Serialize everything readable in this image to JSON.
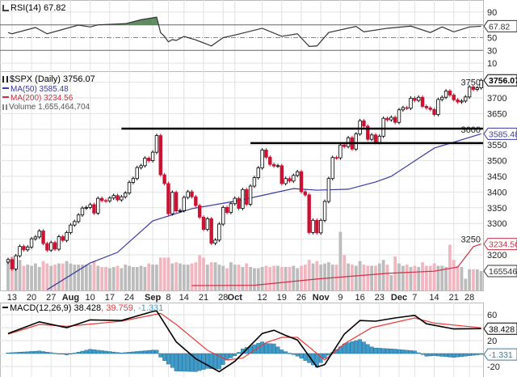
{
  "colors": {
    "up_candle": "#000000",
    "down_candle": "#cc1133",
    "volume_up": "#bcbcbc",
    "volume_down": "#f2b6c0",
    "ma50": "#3a3aa0",
    "ma200": "#cc3048",
    "rsi_line": "#333333",
    "rsi_overbought_fill": "#5e8c5e",
    "macd_line": "#000000",
    "signal_line": "#e83a3a",
    "histogram": "#3d9ccc",
    "grid": "#e2e2e2"
  },
  "chart_data": [
    {
      "type": "line",
      "panel": "rsi",
      "label": "RSI(14) 67.82",
      "value_tag": "67.82",
      "ylim": [
        0,
        100
      ],
      "ticks": [
        90,
        50,
        30,
        10
      ],
      "overbought": 70,
      "oversold": 30,
      "grid": true,
      "points": [
        [
          "07-10",
          58
        ],
        [
          "07-13",
          56
        ],
        [
          "07-21",
          65.8
        ],
        [
          "07-24",
          56
        ],
        [
          "08-05",
          69.6
        ],
        [
          "08-10",
          66.7
        ],
        [
          "08-12",
          70
        ],
        [
          "08-21",
          71.8
        ],
        [
          "08-27",
          78
        ],
        [
          "09-01",
          81
        ],
        [
          "09-02",
          82
        ],
        [
          "09-03",
          58
        ],
        [
          "09-04",
          52
        ],
        [
          "09-08",
          43.4
        ],
        [
          "09-09",
          47
        ],
        [
          "09-10",
          45.6
        ],
        [
          "09-14",
          51.9
        ],
        [
          "09-17",
          46.5
        ],
        [
          "09-23",
          37
        ],
        [
          "09-28",
          50
        ],
        [
          "10-01",
          54
        ],
        [
          "10-12",
          64.6
        ],
        [
          "10-19",
          52
        ],
        [
          "10-23",
          56
        ],
        [
          "10-28",
          36.3
        ],
        [
          "10-30",
          37
        ],
        [
          "11-04",
          58
        ],
        [
          "11-13",
          67.5
        ],
        [
          "11-17",
          59
        ],
        [
          "11-25",
          64.6
        ],
        [
          "12-04",
          68
        ],
        [
          "12-11",
          58
        ],
        [
          "12-16",
          66.7
        ],
        [
          "12-21",
          59
        ],
        [
          "12-28",
          66.7
        ],
        [
          "12-31",
          67.82
        ]
      ]
    },
    {
      "type": "candlestick",
      "panel": "price",
      "label": "$SPX (Daily) 3756.07",
      "ma50_label": "MA(50) 3585.48",
      "ma200_label": "MA(200) 3234.56",
      "volume_label": "Volume 1,655,464,704",
      "price_tag": "3756.07",
      "ma50_tag": "3585.48",
      "ma200_tag": "3234.56",
      "volume_tag": "1655464704",
      "ylim": [
        3100,
        3780
      ],
      "ticks": [
        3750,
        3700,
        3650,
        3600,
        3550,
        3500,
        3450,
        3400,
        3350,
        3300,
        3250,
        3200
      ],
      "grid": true,
      "x_labels": [
        [
          "07-13",
          "13"
        ],
        [
          "07-20",
          "20"
        ],
        [
          "07-27",
          "27"
        ],
        [
          "08-03",
          "Aug"
        ],
        [
          "08-10",
          "10"
        ],
        [
          "08-17",
          "17"
        ],
        [
          "08-24",
          "24"
        ],
        [
          "09-01",
          "Sep"
        ],
        [
          "09-08",
          "8"
        ],
        [
          "09-14",
          "14"
        ],
        [
          "09-21",
          "21"
        ],
        [
          "09-28",
          "28"
        ],
        [
          "10-01",
          "Oct"
        ],
        [
          "10-12",
          "12"
        ],
        [
          "10-19",
          "19"
        ],
        [
          "10-26",
          "26"
        ],
        [
          "11-02",
          "Nov"
        ],
        [
          "11-09",
          "9"
        ],
        [
          "11-16",
          "16"
        ],
        [
          "11-23",
          "23"
        ],
        [
          "12-01",
          "Dec"
        ],
        [
          "12-07",
          "7"
        ],
        [
          "12-14",
          "14"
        ],
        [
          "12-21",
          "21"
        ],
        [
          "12-28",
          "28"
        ]
      ],
      "bold_labels": [
        "Aug",
        "Sep",
        "Oct",
        "Nov",
        "Dec"
      ],
      "candles_date_close_volumeB": [
        [
          "07-10",
          3185,
          2.5
        ],
        [
          "07-13",
          3155,
          2.9
        ],
        [
          "07-14",
          3197,
          2.5
        ],
        [
          "07-15",
          3227,
          2.6
        ],
        [
          "07-16",
          3216,
          2.1
        ],
        [
          "07-17",
          3225,
          2.2
        ],
        [
          "07-20",
          3251,
          2.1
        ],
        [
          "07-21",
          3257,
          2.3
        ],
        [
          "07-22",
          3276,
          2.0
        ],
        [
          "07-23",
          3236,
          2.5
        ],
        [
          "07-24",
          3215,
          2.3
        ],
        [
          "07-27",
          3239,
          2.1
        ],
        [
          "07-28",
          3218,
          2.2
        ],
        [
          "07-29",
          3258,
          2.3
        ],
        [
          "07-30",
          3246,
          2.3
        ],
        [
          "07-31",
          3271,
          2.5
        ],
        [
          "08-03",
          3295,
          2.3
        ],
        [
          "08-04",
          3306,
          2.2
        ],
        [
          "08-05",
          3327,
          2.2
        ],
        [
          "08-06",
          3349,
          2.2
        ],
        [
          "08-07",
          3351,
          2.2
        ],
        [
          "08-10",
          3360,
          2.2
        ],
        [
          "08-11",
          3333,
          2.5
        ],
        [
          "08-12",
          3380,
          2.1
        ],
        [
          "08-13",
          3373,
          2.0
        ],
        [
          "08-14",
          3372,
          2.0
        ],
        [
          "08-17",
          3381,
          1.9
        ],
        [
          "08-18",
          3389,
          2.0
        ],
        [
          "08-19",
          3375,
          2.1
        ],
        [
          "08-20",
          3385,
          1.9
        ],
        [
          "08-21",
          3397,
          2.2
        ],
        [
          "08-24",
          3431,
          2.1
        ],
        [
          "08-25",
          3443,
          2.0
        ],
        [
          "08-26",
          3478,
          2.0
        ],
        [
          "08-27",
          3484,
          2.1
        ],
        [
          "08-28",
          3508,
          2.0
        ],
        [
          "08-31",
          3500,
          2.3
        ],
        [
          "09-01",
          3527,
          2.2
        ],
        [
          "09-02",
          3580,
          2.2
        ],
        [
          "09-03",
          3455,
          2.8
        ],
        [
          "09-04",
          3427,
          2.8
        ],
        [
          "09-08",
          3331,
          2.8
        ],
        [
          "09-09",
          3399,
          2.3
        ],
        [
          "09-10",
          3340,
          2.4
        ],
        [
          "09-11",
          3341,
          2.3
        ],
        [
          "09-14",
          3383,
          2.2
        ],
        [
          "09-15",
          3401,
          2.2
        ],
        [
          "09-16",
          3385,
          2.3
        ],
        [
          "09-17",
          3357,
          2.4
        ],
        [
          "09-18",
          3320,
          3.0
        ],
        [
          "09-21",
          3281,
          2.8
        ],
        [
          "09-22",
          3315,
          2.2
        ],
        [
          "09-23",
          3237,
          2.4
        ],
        [
          "09-24",
          3247,
          2.4
        ],
        [
          "09-25",
          3298,
          2.2
        ],
        [
          "09-28",
          3351,
          2.1
        ],
        [
          "09-29",
          3335,
          1.9
        ],
        [
          "09-30",
          3363,
          2.4
        ],
        [
          "10-01",
          3380,
          2.2
        ],
        [
          "10-02",
          3348,
          2.2
        ],
        [
          "10-05",
          3408,
          2.0
        ],
        [
          "10-06",
          3361,
          2.3
        ],
        [
          "10-07",
          3419,
          2.0
        ],
        [
          "10-08",
          3446,
          1.9
        ],
        [
          "10-09",
          3477,
          1.9
        ],
        [
          "10-12",
          3534,
          2.0
        ],
        [
          "10-13",
          3511,
          2.1
        ],
        [
          "10-14",
          3488,
          2.0
        ],
        [
          "10-15",
          3483,
          2.1
        ],
        [
          "10-16",
          3484,
          2.1
        ],
        [
          "10-19",
          3427,
          2.0
        ],
        [
          "10-20",
          3443,
          2.0
        ],
        [
          "10-21",
          3435,
          2.0
        ],
        [
          "10-22",
          3453,
          2.1
        ],
        [
          "10-23",
          3465,
          1.9
        ],
        [
          "10-26",
          3401,
          2.1
        ],
        [
          "10-27",
          3391,
          2.2
        ],
        [
          "10-28",
          3271,
          2.6
        ],
        [
          "10-29",
          3310,
          2.3
        ],
        [
          "10-30",
          3270,
          2.5
        ],
        [
          "11-02",
          3310,
          2.2
        ],
        [
          "11-03",
          3370,
          2.3
        ],
        [
          "11-04",
          3443,
          2.4
        ],
        [
          "11-05",
          3510,
          2.2
        ],
        [
          "11-06",
          3509,
          2.2
        ],
        [
          "11-09",
          3550,
          5.0
        ],
        [
          "11-10",
          3545,
          3.0
        ],
        [
          "11-11",
          3573,
          2.3
        ],
        [
          "11-12",
          3537,
          2.2
        ],
        [
          "11-13",
          3585,
          2.1
        ],
        [
          "11-16",
          3627,
          2.5
        ],
        [
          "11-17",
          3610,
          2.2
        ],
        [
          "11-18",
          3568,
          2.1
        ],
        [
          "11-19",
          3582,
          2.1
        ],
        [
          "11-20",
          3558,
          2.1
        ],
        [
          "11-23",
          3578,
          2.3
        ],
        [
          "11-24",
          3635,
          2.6
        ],
        [
          "11-25",
          3630,
          2.2
        ],
        [
          "11-27",
          3638,
          1.3
        ],
        [
          "11-30",
          3622,
          2.9
        ],
        [
          "12-01",
          3662,
          2.3
        ],
        [
          "12-02",
          3669,
          2.1
        ],
        [
          "12-03",
          3667,
          2.2
        ],
        [
          "12-04",
          3699,
          2.0
        ],
        [
          "12-07",
          3692,
          2.1
        ],
        [
          "12-08",
          3702,
          2.0
        ],
        [
          "12-09",
          3673,
          2.4
        ],
        [
          "12-10",
          3668,
          2.1
        ],
        [
          "12-11",
          3663,
          2.1
        ],
        [
          "12-14",
          3647,
          2.3
        ],
        [
          "12-15",
          3695,
          2.1
        ],
        [
          "12-16",
          3702,
          2.1
        ],
        [
          "12-17",
          3722,
          2.0
        ],
        [
          "12-18",
          3709,
          3.9
        ],
        [
          "12-21",
          3694,
          2.6
        ],
        [
          "12-22",
          3687,
          2.1
        ],
        [
          "12-23",
          3690,
          2.0
        ],
        [
          "12-24",
          3703,
          1.0
        ],
        [
          "12-28",
          3735,
          1.8
        ],
        [
          "12-29",
          3727,
          1.8
        ],
        [
          "12-30",
          3732,
          1.8
        ],
        [
          "12-31",
          3756,
          1.655
        ]
      ],
      "ma50": [
        [
          "07-24",
          3089
        ],
        [
          "08-10",
          3174
        ],
        [
          "08-19",
          3208
        ],
        [
          "09-01",
          3308
        ],
        [
          "09-16",
          3347
        ],
        [
          "10-02",
          3373
        ],
        [
          "10-22",
          3411
        ],
        [
          "10-30",
          3406
        ],
        [
          "11-11",
          3409
        ],
        [
          "11-20",
          3432
        ],
        [
          "11-27",
          3450
        ],
        [
          "12-14",
          3540
        ],
        [
          "12-31",
          3585.48
        ]
      ],
      "ma200": [
        [
          "09-16",
          3102
        ],
        [
          "10-08",
          3103
        ],
        [
          "10-30",
          3123
        ],
        [
          "11-25",
          3141
        ],
        [
          "12-14",
          3148
        ],
        [
          "12-22",
          3161
        ],
        [
          "12-29",
          3226
        ],
        [
          "12-31",
          3234.56
        ]
      ],
      "horizontal_lines": [
        {
          "price": 3602,
          "from": "08-20"
        },
        {
          "price": 3556,
          "from": "10-07"
        }
      ]
    },
    {
      "type": "line",
      "panel": "macd",
      "label_prefix": "MACD(12,26,9) 38.428",
      "label_signal": ", 39.759",
      "label_hist": ", -1.331",
      "macd_tag": "38.428",
      "hist_tag": "-1.331",
      "ticks": [
        60,
        20,
        -20
      ],
      "grid": true,
      "macd": [
        [
          "07-10",
          31
        ],
        [
          "07-22",
          49
        ],
        [
          "07-31",
          40
        ],
        [
          "08-10",
          52
        ],
        [
          "08-20",
          51
        ],
        [
          "09-01",
          65
        ],
        [
          "09-02",
          66
        ],
        [
          "09-10",
          18
        ],
        [
          "09-17",
          -8
        ],
        [
          "09-25",
          -28
        ],
        [
          "10-01",
          -12
        ],
        [
          "10-12",
          31
        ],
        [
          "10-15",
          36
        ],
        [
          "10-20",
          28
        ],
        [
          "10-23",
          21
        ],
        [
          "10-30",
          -21
        ],
        [
          "11-03",
          -17
        ],
        [
          "11-10",
          30
        ],
        [
          "11-16",
          51
        ],
        [
          "11-20",
          50
        ],
        [
          "11-30",
          55
        ],
        [
          "12-07",
          59
        ],
        [
          "12-10",
          46
        ],
        [
          "12-21",
          38
        ],
        [
          "12-31",
          38.428
        ]
      ],
      "signal": [
        [
          "07-10",
          30
        ],
        [
          "07-22",
          45
        ],
        [
          "07-31",
          42
        ],
        [
          "08-20",
          50
        ],
        [
          "09-03",
          62
        ],
        [
          "09-10",
          45
        ],
        [
          "09-22",
          5
        ],
        [
          "09-29",
          -10
        ],
        [
          "10-05",
          -7
        ],
        [
          "10-13",
          17
        ],
        [
          "10-19",
          25
        ],
        [
          "10-23",
          25
        ],
        [
          "10-29",
          5
        ],
        [
          "11-03",
          -10
        ],
        [
          "11-10",
          15
        ],
        [
          "11-19",
          40
        ],
        [
          "12-07",
          55
        ],
        [
          "12-14",
          47
        ],
        [
          "12-31",
          39.759
        ]
      ]
    }
  ]
}
